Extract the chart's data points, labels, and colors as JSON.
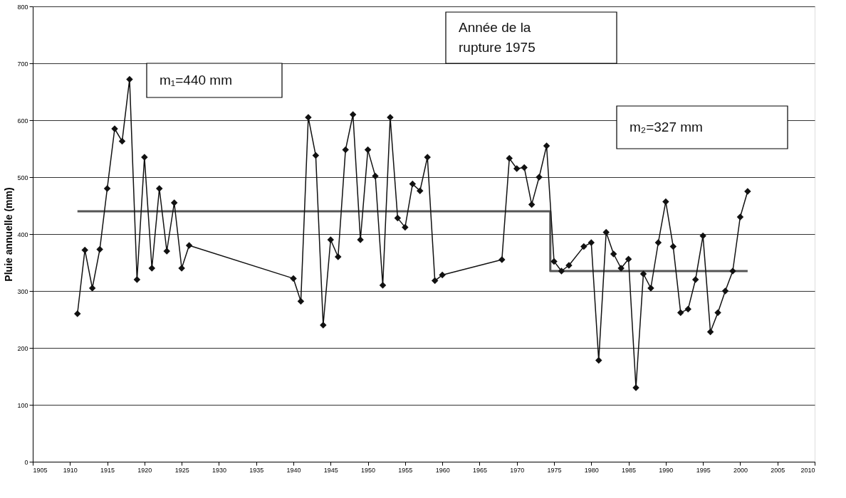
{
  "chart_data": {
    "type": "line",
    "ylabel": "Pluie annuelle (mm)",
    "annotations": [
      "m₁=440 mm",
      "Année de la rupture 1975",
      "m₂=327 mm"
    ],
    "xlim": [
      1905,
      2010
    ],
    "xticks": [
      1905,
      1910,
      1915,
      1920,
      1925,
      1930,
      1935,
      1940,
      1945,
      1950,
      1955,
      1960,
      1965,
      1970,
      1975,
      1980,
      1985,
      1990,
      1995,
      2000,
      2005,
      2010
    ],
    "ylim": [
      0,
      800
    ],
    "yticks": [
      0,
      100,
      200,
      300,
      400,
      500,
      600,
      700,
      800
    ],
    "grid": "y",
    "series": [
      {
        "color": "#555555",
        "marker": "none",
        "x": [
          1911,
          1974.5,
          1974.5,
          2001
        ],
        "values": [
          440,
          440,
          335,
          335
        ]
      },
      {
        "color": "#111111",
        "marker": "diamond",
        "x": [
          1911,
          1912,
          1913,
          1914,
          1915,
          1916,
          1917,
          1918,
          1919,
          1920,
          1921,
          1922,
          1923,
          1924,
          1925,
          1926,
          1940,
          1941,
          1942,
          1943,
          1944,
          1945,
          1946,
          1947,
          1948,
          1949,
          1950,
          1951,
          1952,
          1953,
          1954,
          1955,
          1956,
          1957,
          1958,
          1959,
          1960,
          1968,
          1969,
          1970,
          1971,
          1972,
          1973,
          1974,
          1975,
          1976,
          1977,
          1979,
          1980,
          1981,
          1982,
          1983,
          1984,
          1985,
          1986,
          1987,
          1988,
          1989,
          1990,
          1991,
          1992,
          1993,
          1994,
          1995,
          1996,
          1997,
          1998,
          1999,
          2000,
          2001
        ],
        "values": [
          260,
          372,
          305,
          373,
          480,
          585,
          563,
          672,
          320,
          535,
          340,
          480,
          370,
          455,
          340,
          380,
          322,
          282,
          605,
          538,
          240,
          390,
          360,
          548,
          610,
          390,
          548,
          502,
          310,
          605,
          428,
          412,
          488,
          476,
          535,
          318,
          328,
          355,
          533,
          515,
          517,
          452,
          500,
          555,
          352,
          335,
          345,
          378,
          385,
          178,
          403,
          365,
          340,
          356,
          130,
          330,
          305,
          385,
          457,
          378,
          262,
          268,
          320,
          397,
          228,
          262,
          300,
          335,
          430,
          475
        ]
      }
    ]
  }
}
